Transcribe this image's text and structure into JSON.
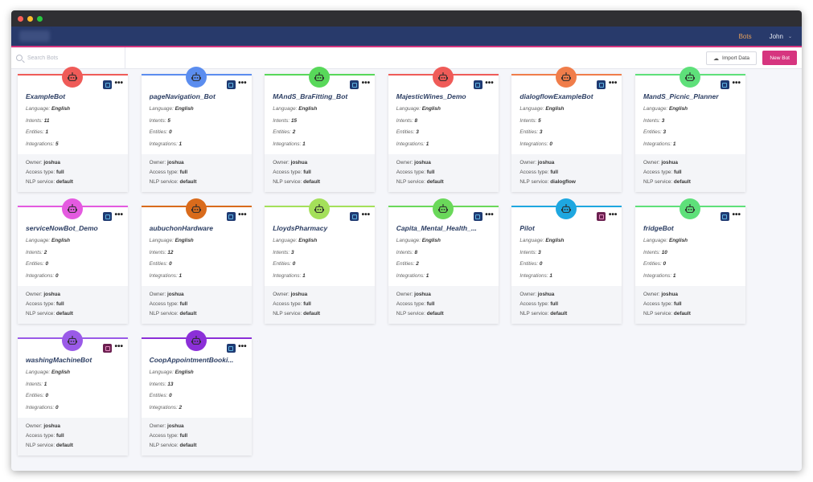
{
  "nav": {
    "tab_bots": "Bots",
    "user": "John"
  },
  "toolbar": {
    "search_placeholder": "Search Bots",
    "import_label": "Import Data",
    "new_bot_label": "New Bot"
  },
  "labels": {
    "language": "Language:",
    "intents": "Intents:",
    "entities": "Entities:",
    "integrations": "Integrations:",
    "owner": "Owner:",
    "access": "Access type:",
    "nlp": "NLP service:"
  },
  "bots": [
    {
      "name": "ExampleBot",
      "language": "English",
      "intents": "11",
      "entities": "1",
      "integrations": "5",
      "owner": "joshua",
      "access": "full",
      "nlp": "default",
      "color": "#ef5b58",
      "icon_style": "blue"
    },
    {
      "name": "pageNavigation_Bot",
      "language": "English",
      "intents": "5",
      "entities": "0",
      "integrations": "1",
      "owner": "joshua",
      "access": "full",
      "nlp": "default",
      "color": "#5b8def",
      "icon_style": "blue"
    },
    {
      "name": "MAndS_BraFitting_Bot",
      "language": "English",
      "intents": "15",
      "entities": "2",
      "integrations": "1",
      "owner": "joshua",
      "access": "full",
      "nlp": "default",
      "color": "#58d85a",
      "icon_style": "blue"
    },
    {
      "name": "MajesticWines_Demo",
      "language": "English",
      "intents": "8",
      "entities": "3",
      "integrations": "1",
      "owner": "joshua",
      "access": "full",
      "nlp": "default",
      "color": "#ef5b58",
      "icon_style": "blue"
    },
    {
      "name": "dialogflowExampleBot",
      "language": "English",
      "intents": "5",
      "entities": "3",
      "integrations": "0",
      "owner": "joshua",
      "access": "full",
      "nlp": "dialogflow",
      "color": "#f07d4a",
      "icon_style": "blue"
    },
    {
      "name": "MandS_Picnic_Planner",
      "language": "English",
      "intents": "3",
      "entities": "3",
      "integrations": "1",
      "owner": "joshua",
      "access": "full",
      "nlp": "default",
      "color": "#5ee07a",
      "icon_style": "blue"
    },
    {
      "name": "serviceNowBot_Demo",
      "language": "English",
      "intents": "2",
      "entities": "0",
      "integrations": "0",
      "owner": "joshua",
      "access": "full",
      "nlp": "default",
      "color": "#e45ae0",
      "icon_style": "blue"
    },
    {
      "name": "aubuchonHardware",
      "language": "English",
      "intents": "12",
      "entities": "0",
      "integrations": "1",
      "owner": "joshua",
      "access": "full",
      "nlp": "default",
      "color": "#d96b1c",
      "icon_style": "blue"
    },
    {
      "name": "LloydsPharmacy",
      "language": "English",
      "intents": "3",
      "entities": "0",
      "integrations": "1",
      "owner": "joshua",
      "access": "full",
      "nlp": "default",
      "color": "#a4e05a",
      "icon_style": "blue"
    },
    {
      "name": "Capita_Mental_Health_...",
      "language": "English",
      "intents": "8",
      "entities": "2",
      "integrations": "1",
      "owner": "joshua",
      "access": "full",
      "nlp": "default",
      "color": "#6ad85a",
      "icon_style": "blue"
    },
    {
      "name": "Pilot",
      "language": "English",
      "intents": "3",
      "entities": "0",
      "integrations": "1",
      "owner": "joshua",
      "access": "full",
      "nlp": "default",
      "color": "#1ea7e0",
      "icon_style": "pink"
    },
    {
      "name": "fridgeBot",
      "language": "English",
      "intents": "10",
      "entities": "0",
      "integrations": "1",
      "owner": "joshua",
      "access": "full",
      "nlp": "default",
      "color": "#5ee07a",
      "icon_style": "blue"
    },
    {
      "name": "washingMachineBot",
      "language": "English",
      "intents": "1",
      "entities": "0",
      "integrations": "0",
      "owner": "joshua",
      "access": "full",
      "nlp": "default",
      "color": "#9a5ae8",
      "icon_style": "pink"
    },
    {
      "name": "CoopAppointmentBooki...",
      "language": "English",
      "intents": "13",
      "entities": "0",
      "integrations": "2",
      "owner": "joshua",
      "access": "full",
      "nlp": "default",
      "color": "#8b2fd8",
      "icon_style": "blue"
    }
  ]
}
